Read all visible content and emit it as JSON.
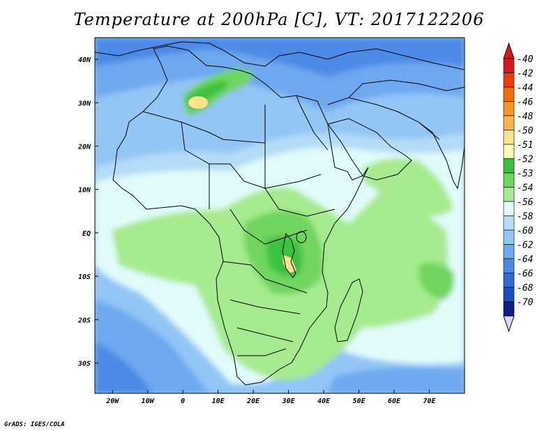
{
  "title": "Temperature at 200hPa [C], VT: 2017122206",
  "credit": "GrADS: IGES/COLA",
  "map": {
    "region": "Africa",
    "lon_range": [
      -25,
      80
    ],
    "lat_range": [
      -37,
      45
    ],
    "x_ticks": [
      {
        "lon": -20,
        "label": "20W"
      },
      {
        "lon": -10,
        "label": "10W"
      },
      {
        "lon": 0,
        "label": "0"
      },
      {
        "lon": 10,
        "label": "10E"
      },
      {
        "lon": 20,
        "label": "20E"
      },
      {
        "lon": 30,
        "label": "30E"
      },
      {
        "lon": 40,
        "label": "40E"
      },
      {
        "lon": 50,
        "label": "50E"
      },
      {
        "lon": 60,
        "label": "60E"
      },
      {
        "lon": 70,
        "label": "70E"
      }
    ],
    "y_ticks": [
      {
        "lat": 40,
        "label": "40N"
      },
      {
        "lat": 30,
        "label": "30N"
      },
      {
        "lat": 20,
        "label": "20N"
      },
      {
        "lat": 10,
        "label": "10N"
      },
      {
        "lat": 0,
        "label": "EQ"
      },
      {
        "lat": -10,
        "label": "10S"
      },
      {
        "lat": -20,
        "label": "20S"
      },
      {
        "lat": -30,
        "label": "30S"
      }
    ]
  },
  "colorbar": {
    "labels": [
      "-40",
      "-42",
      "-44",
      "-46",
      "-48",
      "-50",
      "-51",
      "-52",
      "-53",
      "-54",
      "-56",
      "-58",
      "-60",
      "-62",
      "-64",
      "-66",
      "-68",
      "-70"
    ],
    "colors": [
      "#d7191c",
      "#f03c0a",
      "#f76a0a",
      "#f9951f",
      "#fbb448",
      "#fbe48c",
      "#fdf7b8",
      "#3cc13f",
      "#6fd65f",
      "#a6eb8f",
      "#e1fbfb",
      "#b4dcf8",
      "#93c5f5",
      "#6ea8ef",
      "#4b8ae6",
      "#2e6cd8",
      "#1b4fc4",
      "#0c1f86"
    ],
    "over_color": "#d7191c",
    "under_color": "#dcd6fb"
  }
}
